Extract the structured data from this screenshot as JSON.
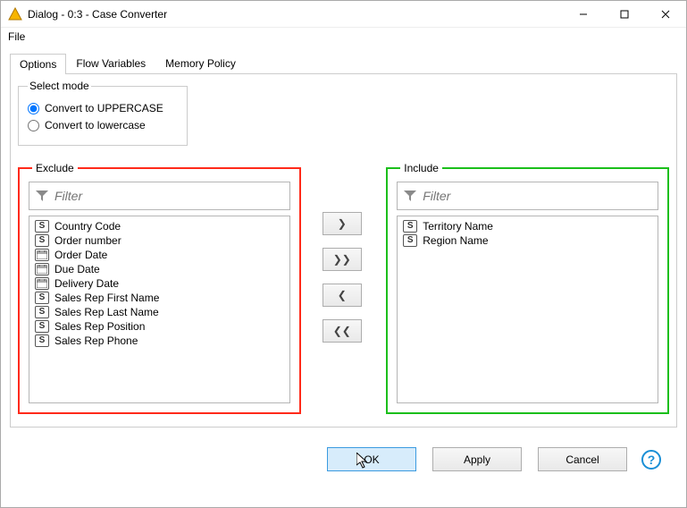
{
  "window": {
    "title": "Dialog - 0:3 - Case Converter"
  },
  "menubar": {
    "file": "File"
  },
  "tabs": {
    "options": "Options",
    "flow": "Flow Variables",
    "memory": "Memory Policy"
  },
  "mode": {
    "legend": "Select mode",
    "upper": "Convert to UPPERCASE",
    "lower": "Convert to lowercase",
    "selected": "upper"
  },
  "exclude": {
    "legend": "Exclude",
    "filter_placeholder": "Filter",
    "border_color": "#ff2a1a",
    "items": [
      {
        "type": "S",
        "label": "Country Code"
      },
      {
        "type": "S",
        "label": "Order number"
      },
      {
        "type": "D",
        "label": "Order Date"
      },
      {
        "type": "D",
        "label": "Due Date"
      },
      {
        "type": "D",
        "label": "Delivery Date"
      },
      {
        "type": "S",
        "label": "Sales Rep First Name"
      },
      {
        "type": "S",
        "label": "Sales Rep Last Name"
      },
      {
        "type": "S",
        "label": "Sales Rep Position"
      },
      {
        "type": "S",
        "label": "Sales Rep Phone"
      }
    ]
  },
  "include": {
    "legend": "Include",
    "filter_placeholder": "Filter",
    "border_color": "#1bbf1b",
    "items": [
      {
        "type": "S",
        "label": "Territory Name"
      },
      {
        "type": "S",
        "label": "Region Name"
      }
    ]
  },
  "buttons": {
    "ok": "OK",
    "apply": "Apply",
    "cancel": "Cancel",
    "help": "?"
  },
  "arrows": {
    "add": "❯",
    "addAll": "❯❯",
    "remove": "❮",
    "removeAll": "❮❮"
  }
}
